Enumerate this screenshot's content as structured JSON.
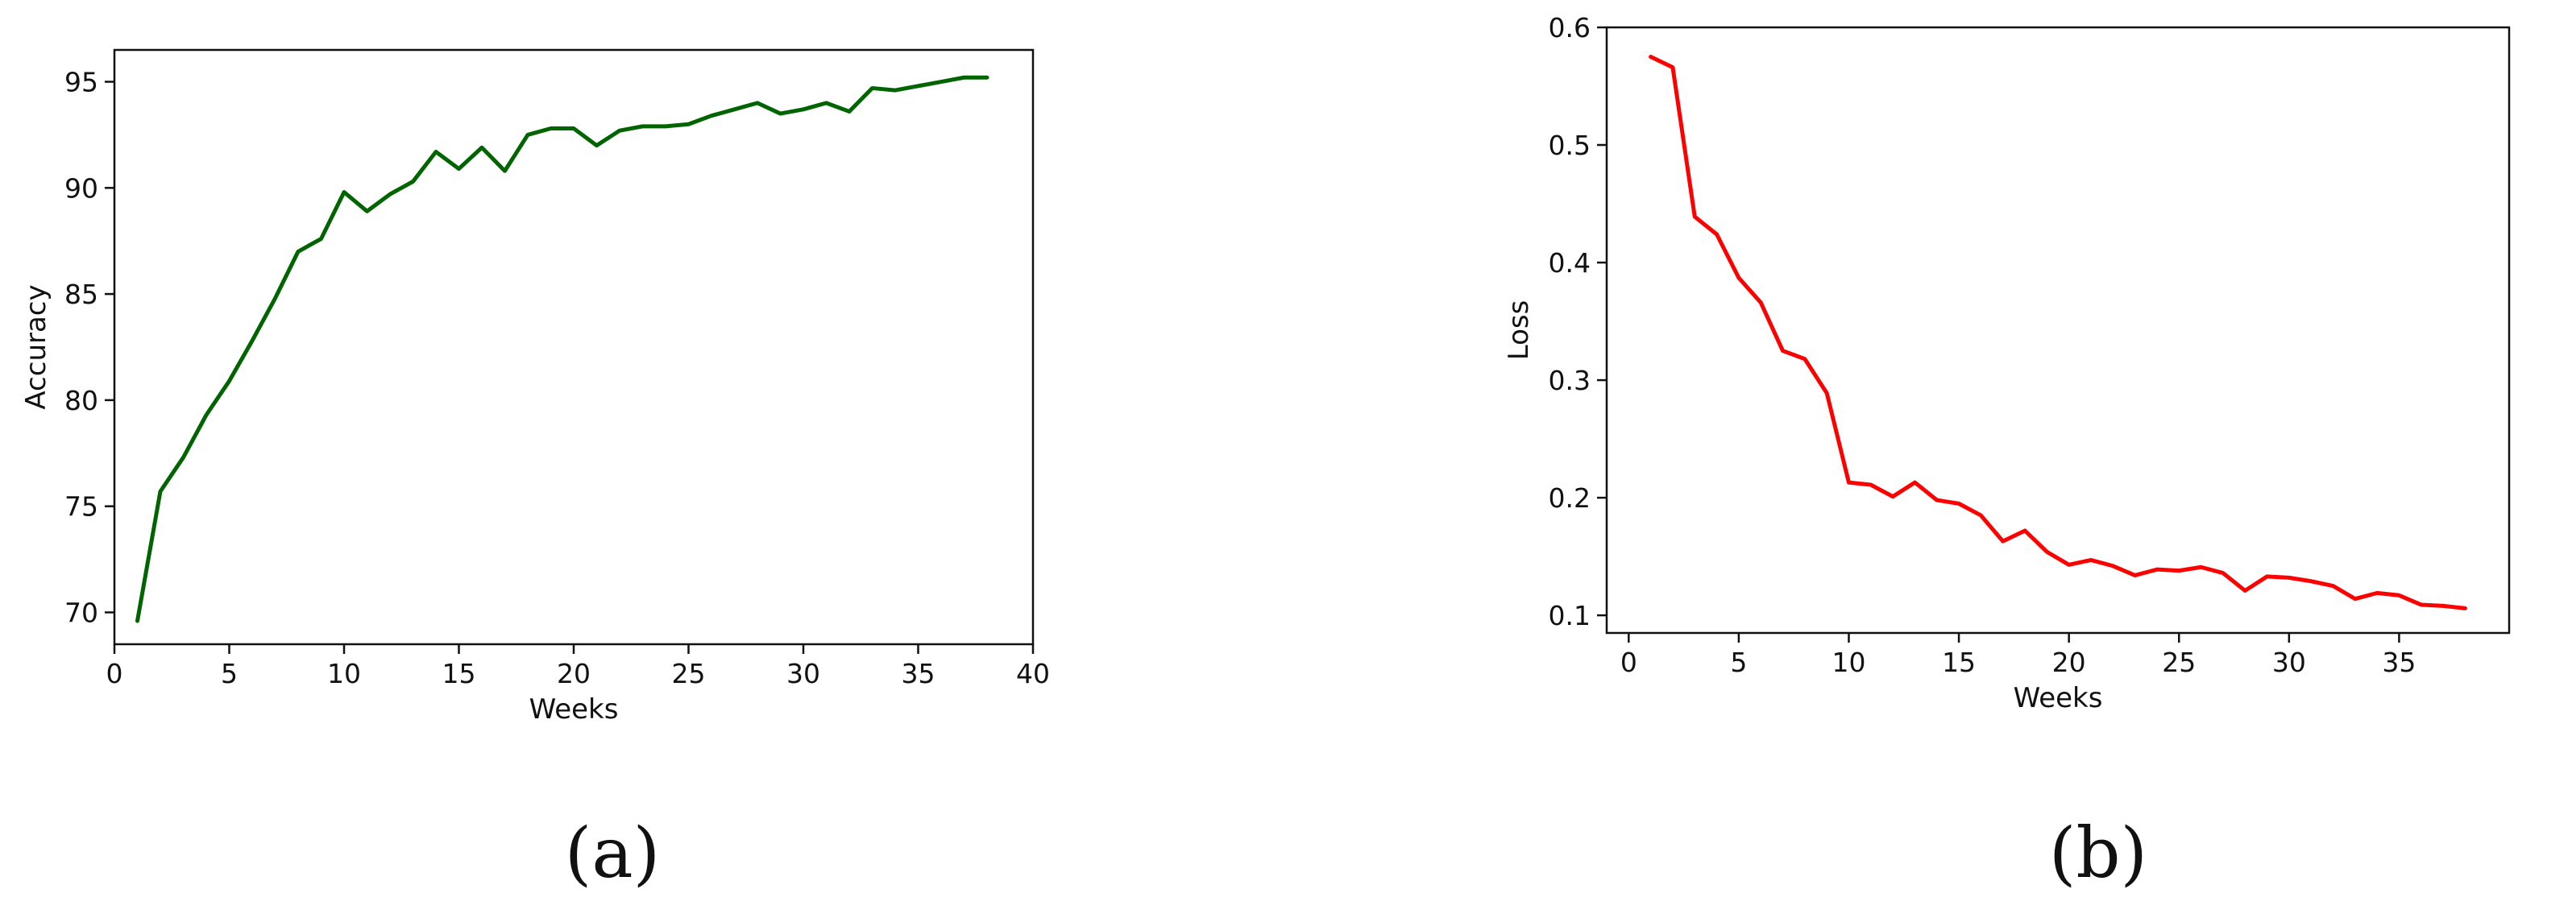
{
  "captions": {
    "a": "(a)",
    "b": "(b)"
  },
  "chart_data": [
    {
      "type": "line",
      "color": "#006400",
      "xlabel": "Weeks",
      "ylabel": "Accuracy",
      "xlim": [
        0,
        40
      ],
      "ylim": [
        68.5,
        96.5
      ],
      "xticks": [
        0,
        5,
        10,
        15,
        20,
        25,
        30,
        35,
        40
      ],
      "yticks": [
        70,
        75,
        80,
        85,
        90,
        95
      ],
      "grid": false,
      "x": [
        1,
        2,
        3,
        4,
        5,
        6,
        7,
        8,
        9,
        10,
        11,
        12,
        13,
        14,
        15,
        16,
        17,
        18,
        19,
        20,
        21,
        22,
        23,
        24,
        25,
        26,
        27,
        28,
        29,
        30,
        31,
        32,
        33,
        34,
        35,
        36,
        37,
        38
      ],
      "series": [
        {
          "values": [
            69.6,
            75.7,
            77.3,
            79.3,
            80.9,
            82.8,
            84.8,
            87.0,
            87.6,
            89.8,
            88.9,
            89.7,
            90.3,
            91.7,
            90.9,
            91.9,
            90.8,
            92.5,
            92.8,
            92.8,
            92.0,
            92.7,
            92.9,
            92.9,
            93.0,
            93.4,
            93.7,
            94.0,
            93.5,
            93.7,
            94.0,
            93.6,
            94.7,
            94.6,
            94.8,
            95.0,
            95.2,
            95.2
          ]
        }
      ]
    },
    {
      "type": "line",
      "color": "#ff0000",
      "xlabel": "Weeks",
      "ylabel": "Loss",
      "xlim": [
        -1,
        40
      ],
      "ylim": [
        0.085,
        0.6
      ],
      "xticks": [
        0,
        5,
        10,
        15,
        20,
        25,
        30,
        35
      ],
      "yticks": [
        0.1,
        0.2,
        0.3,
        0.4,
        0.5,
        0.6
      ],
      "grid": false,
      "x": [
        1,
        2,
        3,
        4,
        5,
        6,
        7,
        8,
        9,
        10,
        11,
        12,
        13,
        14,
        15,
        16,
        17,
        18,
        19,
        20,
        21,
        22,
        23,
        24,
        25,
        26,
        27,
        28,
        29,
        30,
        31,
        32,
        33,
        34,
        35,
        36,
        37,
        38
      ],
      "series": [
        {
          "values": [
            0.575,
            0.566,
            0.439,
            0.424,
            0.387,
            0.366,
            0.325,
            0.318,
            0.289,
            0.213,
            0.211,
            0.201,
            0.213,
            0.198,
            0.195,
            0.185,
            0.163,
            0.172,
            0.154,
            0.143,
            0.147,
            0.142,
            0.134,
            0.139,
            0.138,
            0.141,
            0.136,
            0.121,
            0.133,
            0.132,
            0.129,
            0.125,
            0.114,
            0.119,
            0.117,
            0.109,
            0.108,
            0.106
          ]
        }
      ]
    }
  ]
}
